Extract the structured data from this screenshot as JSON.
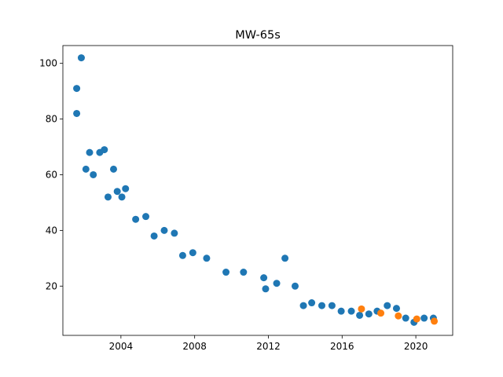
{
  "chart_data": {
    "type": "scatter",
    "title": "MW-65s",
    "xlabel": "",
    "ylabel": "",
    "xlim": [
      2000.85,
      2022.0
    ],
    "ylim": [
      2.3,
      106.4
    ],
    "x_ticks": [
      2004,
      2008,
      2012,
      2016,
      2020
    ],
    "x_tick_labels": [
      "2004",
      "2008",
      "2012",
      "2016",
      "2020"
    ],
    "y_ticks": [
      20,
      40,
      60,
      80,
      100
    ],
    "y_tick_labels": [
      "20",
      "40",
      "60",
      "80",
      "100"
    ],
    "grid": false,
    "legend": "none",
    "series": [
      {
        "color": "#1f77b4",
        "points": [
          [
            2001.6,
            91
          ],
          [
            2001.6,
            82
          ],
          [
            2001.85,
            102
          ],
          [
            2002.1,
            62
          ],
          [
            2002.3,
            68
          ],
          [
            2002.5,
            60
          ],
          [
            2002.85,
            68
          ],
          [
            2003.1,
            69
          ],
          [
            2003.3,
            52
          ],
          [
            2003.6,
            62
          ],
          [
            2003.8,
            54
          ],
          [
            2004.05,
            52
          ],
          [
            2004.25,
            55
          ],
          [
            2004.8,
            44
          ],
          [
            2005.35,
            45
          ],
          [
            2005.8,
            38
          ],
          [
            2006.35,
            40
          ],
          [
            2006.9,
            39
          ],
          [
            2007.35,
            31
          ],
          [
            2007.9,
            32
          ],
          [
            2008.65,
            30
          ],
          [
            2009.7,
            25
          ],
          [
            2010.65,
            25
          ],
          [
            2011.75,
            23
          ],
          [
            2011.85,
            19
          ],
          [
            2012.45,
            21
          ],
          [
            2012.9,
            30
          ],
          [
            2013.45,
            20
          ],
          [
            2013.9,
            13
          ],
          [
            2014.35,
            14
          ],
          [
            2014.9,
            13
          ],
          [
            2015.45,
            13
          ],
          [
            2015.95,
            11
          ],
          [
            2016.5,
            11
          ],
          [
            2016.95,
            9.5
          ],
          [
            2017.45,
            10
          ],
          [
            2017.9,
            11
          ],
          [
            2018.45,
            13
          ],
          [
            2018.95,
            12
          ],
          [
            2019.45,
            8.5
          ],
          [
            2019.9,
            7
          ],
          [
            2020.45,
            8.5
          ],
          [
            2020.95,
            8.5
          ]
        ]
      },
      {
        "color": "#ff7f0e",
        "points": [
          [
            2017.05,
            11.8
          ],
          [
            2018.1,
            10.3
          ],
          [
            2019.05,
            9.3
          ],
          [
            2020.05,
            8.2
          ],
          [
            2021.0,
            7.4
          ]
        ]
      }
    ]
  }
}
